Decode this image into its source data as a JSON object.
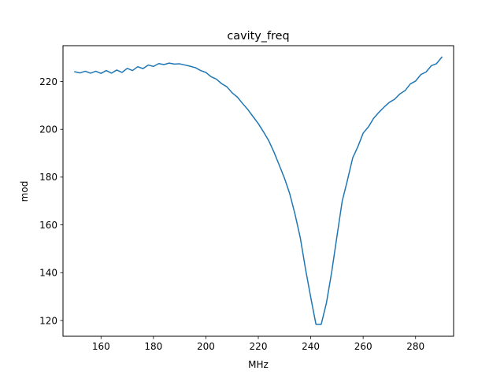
{
  "chart_data": {
    "type": "line",
    "title": "cavity_freq",
    "xlabel": "MHz",
    "ylabel": "mod",
    "xlim": [
      145.5,
      294.5
    ],
    "ylim": [
      113.4,
      235.0
    ],
    "xticks": [
      160,
      180,
      200,
      220,
      240,
      260,
      280
    ],
    "yticks": [
      120,
      140,
      160,
      180,
      200,
      220
    ],
    "grid": false,
    "legend": "none",
    "series": [
      {
        "color": "#1f77b4",
        "x": [
          150,
          152,
          154,
          156,
          158,
          160,
          162,
          164,
          166,
          168,
          170,
          172,
          174,
          176,
          178,
          180,
          182,
          184,
          186,
          188,
          190,
          192,
          194,
          196,
          198,
          200,
          202,
          204,
          206,
          208,
          210,
          212,
          214,
          216,
          218,
          220,
          222,
          224,
          226,
          228,
          230,
          232,
          234,
          236,
          238,
          240,
          242,
          244,
          246,
          248,
          250,
          252,
          254,
          256,
          258,
          260,
          262,
          264,
          266,
          268,
          270,
          272,
          274,
          276,
          278,
          280,
          282,
          284,
          286,
          288,
          290
        ],
        "y": [
          224.1,
          223.6,
          224.3,
          223.5,
          224.3,
          223.4,
          224.6,
          223.5,
          224.8,
          223.8,
          225.5,
          224.6,
          226.2,
          225.4,
          226.9,
          226.3,
          227.5,
          227.1,
          227.7,
          227.3,
          227.4,
          226.9,
          226.4,
          225.8,
          224.6,
          223.8,
          222.0,
          221.0,
          219.1,
          217.8,
          215.3,
          213.5,
          210.8,
          208.3,
          205.3,
          202.4,
          198.9,
          195.2,
          190.4,
          185.0,
          179.5,
          173.0,
          164.5,
          154.7,
          141.6,
          129.7,
          118.4,
          118.4,
          127.4,
          140.3,
          155.2,
          169.9,
          178.7,
          188.0,
          192.8,
          198.4,
          201.0,
          204.6,
          207.1,
          209.3,
          211.3,
          212.6,
          214.8,
          216.2,
          219.0,
          220.2,
          222.9,
          224.0,
          226.6,
          227.5,
          230.2
        ]
      }
    ]
  }
}
